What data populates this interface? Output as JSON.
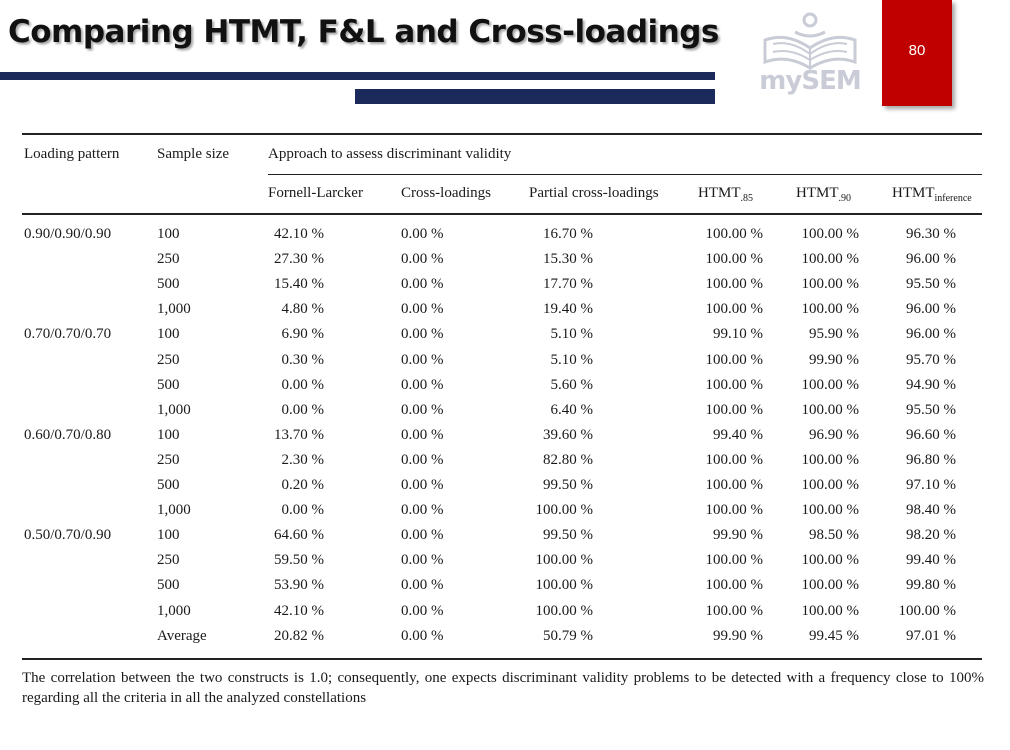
{
  "header": {
    "title": "Comparing HTMT, F&L and Cross-loadings",
    "logo_text": "mySEM",
    "page_number": "80"
  },
  "colors": {
    "navy": "#1b2a5a",
    "red": "#c00000",
    "logo_gray": "#c9ccd6"
  },
  "table": {
    "col_loading": "Loading pattern",
    "col_sample": "Sample size",
    "group_header": "Approach to assess discriminant validity",
    "cols": {
      "fl": "Fornell-Larcker",
      "cl": "Cross-loadings",
      "pcl": "Partial cross-loadings",
      "h85": {
        "base": "HTMT",
        "sub": ".85"
      },
      "h90": {
        "base": "HTMT",
        "sub": ".90"
      },
      "hinf": {
        "base": "HTMT",
        "sub": "inference"
      }
    },
    "rows": [
      [
        "0.90/0.90/0.90",
        "100",
        "42.10 %",
        "0.00 %",
        "16.70 %",
        "100.00 %",
        "100.00 %",
        "96.30 %"
      ],
      [
        "",
        "250",
        "27.30 %",
        "0.00 %",
        "15.30 %",
        "100.00 %",
        "100.00 %",
        "96.00 %"
      ],
      [
        "",
        "500",
        "15.40 %",
        "0.00 %",
        "17.70 %",
        "100.00 %",
        "100.00 %",
        "95.50 %"
      ],
      [
        "",
        "1,000",
        "4.80 %",
        "0.00 %",
        "19.40 %",
        "100.00 %",
        "100.00 %",
        "96.00 %"
      ],
      [
        "0.70/0.70/0.70",
        "100",
        "6.90 %",
        "0.00 %",
        "5.10 %",
        "99.10 %",
        "95.90 %",
        "96.00 %"
      ],
      [
        "",
        "250",
        "0.30 %",
        "0.00 %",
        "5.10 %",
        "100.00 %",
        "99.90 %",
        "95.70 %"
      ],
      [
        "",
        "500",
        "0.00 %",
        "0.00 %",
        "5.60 %",
        "100.00 %",
        "100.00 %",
        "94.90 %"
      ],
      [
        "",
        "1,000",
        "0.00 %",
        "0.00 %",
        "6.40 %",
        "100.00 %",
        "100.00 %",
        "95.50 %"
      ],
      [
        "0.60/0.70/0.80",
        "100",
        "13.70 %",
        "0.00 %",
        "39.60 %",
        "99.40 %",
        "96.90 %",
        "96.60 %"
      ],
      [
        "",
        "250",
        "2.30 %",
        "0.00 %",
        "82.80 %",
        "100.00 %",
        "100.00 %",
        "96.80 %"
      ],
      [
        "",
        "500",
        "0.20 %",
        "0.00 %",
        "99.50 %",
        "100.00 %",
        "100.00 %",
        "97.10 %"
      ],
      [
        "",
        "1,000",
        "0.00 %",
        "0.00 %",
        "100.00 %",
        "100.00 %",
        "100.00 %",
        "98.40 %"
      ],
      [
        "0.50/0.70/0.90",
        "100",
        "64.60 %",
        "0.00 %",
        "99.50 %",
        "99.90 %",
        "98.50 %",
        "98.20 %"
      ],
      [
        "",
        "250",
        "59.50 %",
        "0.00 %",
        "100.00 %",
        "100.00 %",
        "100.00 %",
        "99.40 %"
      ],
      [
        "",
        "500",
        "53.90 %",
        "0.00 %",
        "100.00 %",
        "100.00 %",
        "100.00 %",
        "99.80 %"
      ],
      [
        "",
        "1,000",
        "42.10 %",
        "0.00 %",
        "100.00 %",
        "100.00 %",
        "100.00 %",
        "100.00 %"
      ],
      [
        "",
        "Average",
        "20.82 %",
        "0.00 %",
        "50.79 %",
        "99.90 %",
        "99.45 %",
        "97.01 %"
      ]
    ]
  },
  "footnote": "The correlation between the two constructs is 1.0; consequently, one expects discriminant validity problems to be detected with a frequency close to 100% regarding all the criteria in all the analyzed constellations"
}
